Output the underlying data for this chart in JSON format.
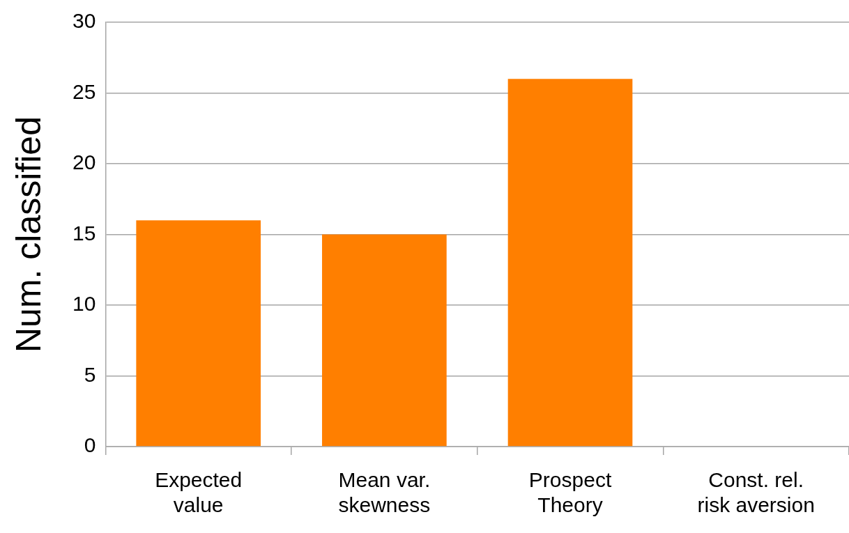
{
  "chart_data": {
    "type": "bar",
    "ylabel": "Num. classified",
    "categories": [
      "Expected value",
      "Mean var. skewness",
      "Prospect Theory",
      "Const. rel. risk aversion"
    ],
    "values": [
      16,
      15,
      26,
      0
    ],
    "color": "#ff7f00",
    "ylim": [
      0,
      30
    ],
    "yticks": [
      0,
      5,
      10,
      15,
      20,
      25,
      30
    ],
    "grid": "y",
    "legend": false
  }
}
